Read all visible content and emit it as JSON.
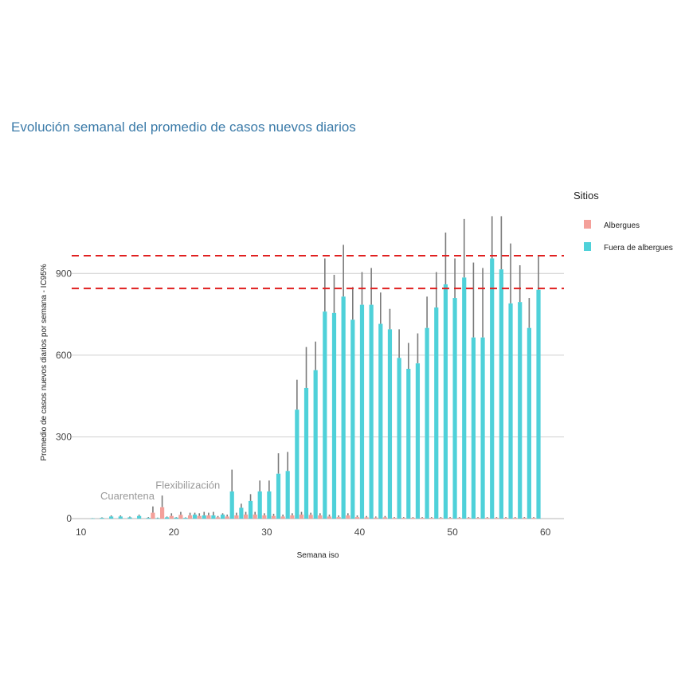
{
  "chart_data": {
    "type": "bar",
    "title": "Evolución semanal del promedio de casos nuevos diarios",
    "xlabel": "Semana iso",
    "ylabel": "Promedio de casos nuevos diarios por semana - IC95%",
    "xlim": [
      9,
      62
    ],
    "ylim": [
      -20,
      1120
    ],
    "x_ticks": [
      10,
      20,
      30,
      40,
      50,
      60
    ],
    "y_ticks": [
      0,
      300,
      600,
      900
    ],
    "grid": true,
    "legend": {
      "title": "Sitios",
      "position": "right"
    },
    "reference_lines": [
      845,
      965
    ],
    "annotations": [
      {
        "text": "Cuarentena",
        "x": 15,
        "y": 70
      },
      {
        "text": "Flexibilización",
        "x": 21.5,
        "y": 110
      }
    ],
    "series": [
      {
        "name": "Albergues",
        "color": "#f4a09a",
        "x": [
          18,
          19,
          20,
          21,
          22,
          23,
          24,
          25,
          26,
          27,
          28,
          29,
          30,
          31,
          32,
          33,
          34,
          35,
          36,
          37,
          38,
          39,
          40,
          41,
          42,
          43,
          44,
          45,
          46,
          47,
          48,
          49,
          50,
          51,
          52,
          53,
          54,
          55,
          56,
          57,
          58,
          59
        ],
        "values": [
          22,
          42,
          10,
          14,
          12,
          10,
          12,
          5,
          8,
          12,
          15,
          15,
          12,
          10,
          8,
          12,
          15,
          14,
          12,
          8,
          6,
          12,
          6,
          5,
          4,
          5,
          3,
          3,
          3,
          3,
          3,
          3,
          3,
          3,
          3,
          3,
          3,
          3,
          3,
          3,
          3,
          3
        ],
        "upper": [
          45,
          85,
          20,
          25,
          22,
          20,
          22,
          10,
          15,
          22,
          25,
          25,
          20,
          18,
          15,
          20,
          25,
          22,
          20,
          15,
          12,
          20,
          12,
          10,
          8,
          10,
          6,
          6,
          6,
          6,
          6,
          6,
          6,
          6,
          6,
          6,
          6,
          6,
          6,
          6,
          6,
          6
        ]
      },
      {
        "name": "Fuera de albergues",
        "color": "#4fd1d9",
        "x": [
          11,
          12,
          13,
          14,
          15,
          16,
          17,
          18,
          19,
          20,
          21,
          22,
          23,
          24,
          25,
          26,
          27,
          28,
          29,
          30,
          31,
          32,
          33,
          34,
          35,
          36,
          37,
          38,
          39,
          40,
          41,
          42,
          43,
          44,
          45,
          46,
          47,
          48,
          49,
          50,
          51,
          52,
          53,
          54,
          55,
          56,
          57,
          58,
          59
        ],
        "values": [
          1,
          3,
          8,
          8,
          5,
          10,
          3,
          2,
          5,
          4,
          3,
          15,
          12,
          12,
          15,
          100,
          40,
          65,
          100,
          100,
          165,
          175,
          400,
          480,
          545,
          760,
          755,
          815,
          730,
          785,
          785,
          715,
          695,
          590,
          550,
          570,
          700,
          775,
          860,
          810,
          885,
          665,
          665,
          955,
          915,
          790,
          795,
          700,
          840
        ],
        "upper": [
          2,
          5,
          12,
          12,
          8,
          15,
          6,
          4,
          8,
          6,
          5,
          22,
          25,
          25,
          20,
          180,
          55,
          90,
          140,
          140,
          240,
          245,
          510,
          630,
          650,
          955,
          895,
          1005,
          850,
          905,
          920,
          830,
          770,
          695,
          645,
          680,
          815,
          905,
          1050,
          955,
          1100,
          940,
          920,
          1110,
          1110,
          1010,
          930,
          810,
          965
        ]
      }
    ]
  }
}
